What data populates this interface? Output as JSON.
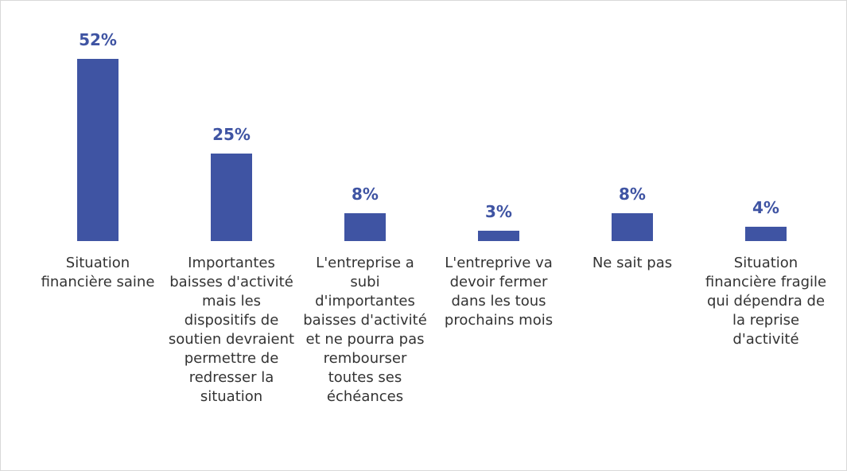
{
  "chart_data": {
    "type": "bar",
    "categories": [
      "Situation financière saine",
      "Importantes baisses d'activité mais les dispositifs de soutien devraient permettre de redresser la situation",
      "L'entreprise a subi d'importantes baisses d'activité et ne pourra pas rembourser toutes ses échéances",
      "L'entreprive va devoir fermer dans les tous prochains mois",
      "Ne sait pas",
      "Situation financière fragile qui dépendra de la reprise d'activité"
    ],
    "values": [
      52,
      25,
      8,
      3,
      8,
      4
    ],
    "value_labels": [
      "52%",
      "25%",
      "8%",
      "3%",
      "8%",
      "4%"
    ],
    "color": "#3f54a3"
  }
}
